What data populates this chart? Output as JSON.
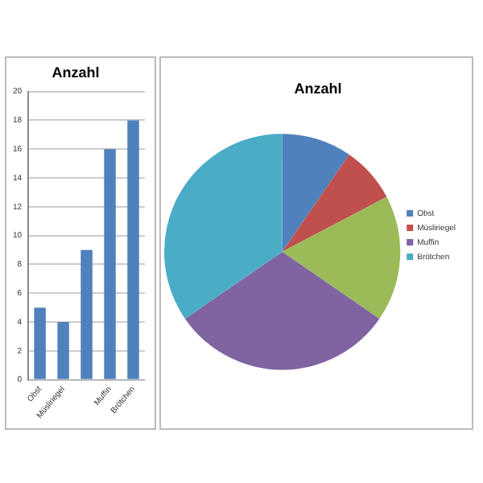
{
  "chart_data": [
    {
      "type": "bar",
      "title": "Anzahl",
      "categories": [
        "Obst",
        "Müsliriegel",
        null,
        "Muffin",
        "Brötchen"
      ],
      "values": [
        5,
        4,
        9,
        16,
        18
      ],
      "color": "#4f81bd",
      "ylim": [
        0,
        20
      ],
      "yticks": [
        0,
        2,
        4,
        6,
        8,
        10,
        12,
        14,
        16,
        18,
        20
      ],
      "grid": "y",
      "legend": false
    },
    {
      "type": "pie",
      "title": "Anzahl",
      "categories": [
        "Obst",
        "Müsliriegel",
        null,
        "Muffin",
        "Brötchen"
      ],
      "values": [
        9.6,
        7.7,
        17.3,
        30.8,
        34.6
      ],
      "colors": [
        "#4f81bd",
        "#c0504d",
        "#9bbb59",
        "#8064a2",
        "#4bacc6"
      ],
      "legend": "right"
    }
  ]
}
